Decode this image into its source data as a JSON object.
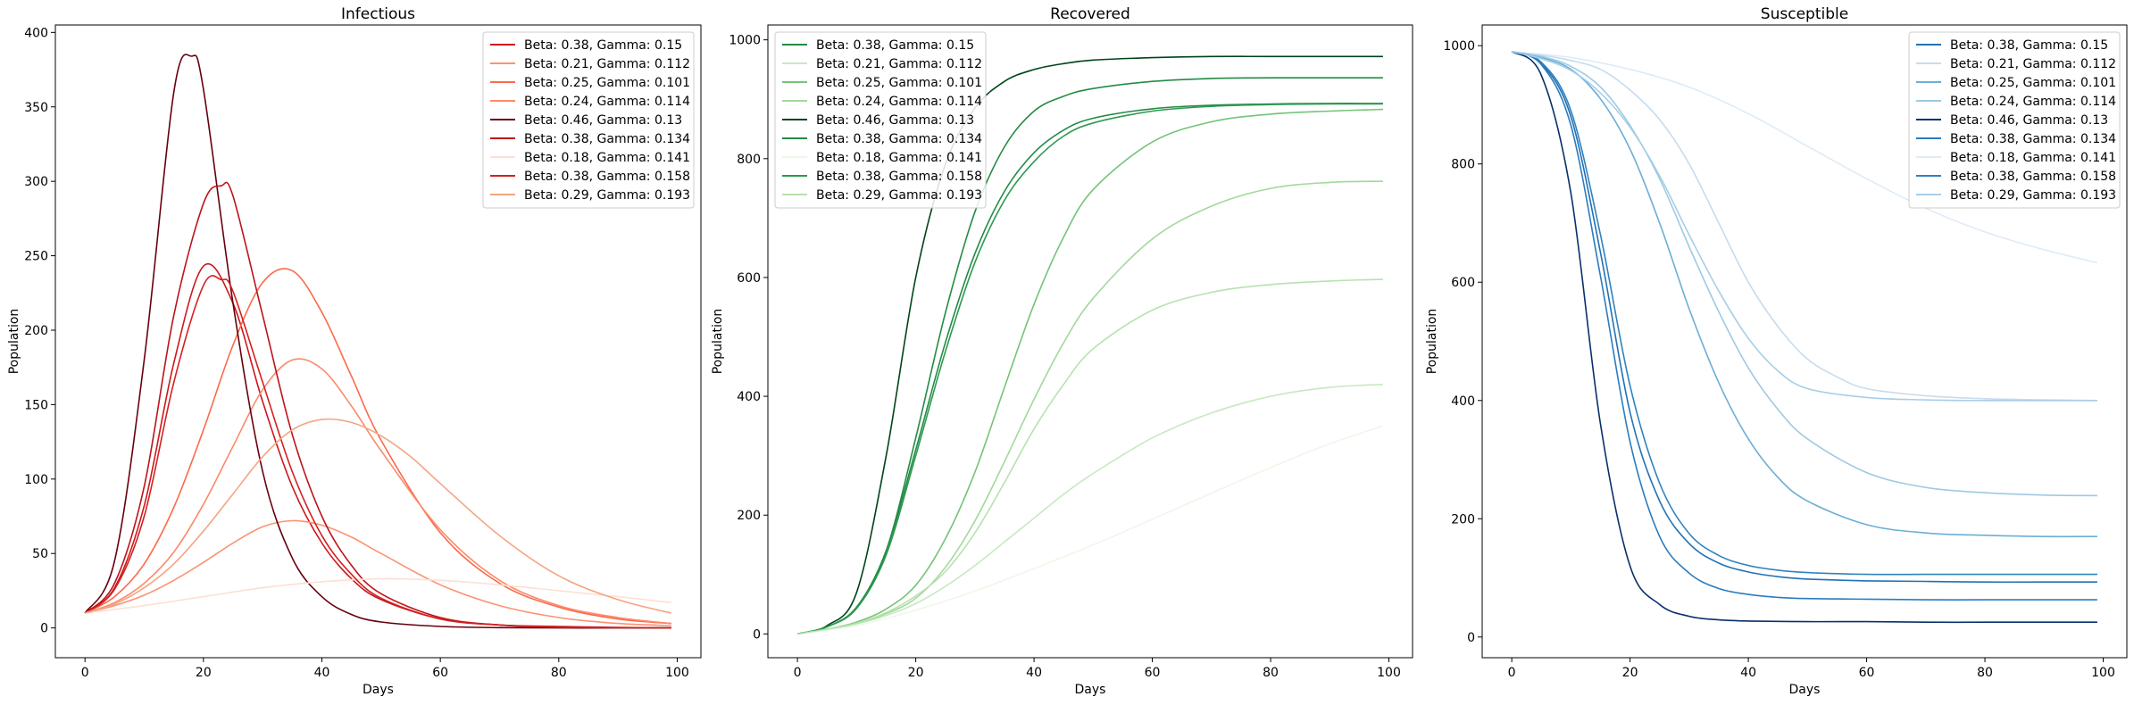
{
  "chart_data": [
    {
      "type": "line",
      "title": "Infectious",
      "xlabel": "Days",
      "ylabel": "Population",
      "xlim": [
        -5,
        104
      ],
      "ylim": [
        -20,
        405
      ],
      "xticks": [
        0,
        20,
        40,
        60,
        80,
        100
      ],
      "yticks": [
        0,
        50,
        100,
        150,
        200,
        250,
        300,
        350,
        400
      ],
      "legend_position": "top-right",
      "series": [
        {
          "name": "Beta: 0.38, Gamma: 0.15",
          "color": "#cb181d",
          "x": [
            0,
            5,
            10,
            15,
            20,
            25,
            30,
            35,
            40,
            45,
            50,
            60,
            70,
            80,
            90,
            99
          ],
          "y": [
            10,
            27,
            82,
            178,
            243,
            218,
            152,
            95,
            57,
            33,
            19,
            6,
            2,
            1,
            0.3,
            0.1
          ]
        },
        {
          "name": "Beta: 0.21, Gamma: 0.112",
          "color": "#fc9272",
          "x": [
            0,
            5,
            10,
            15,
            20,
            25,
            30,
            35,
            40,
            45,
            50,
            60,
            70,
            80,
            90,
            99
          ],
          "y": [
            10,
            15,
            22,
            32,
            44,
            57,
            68,
            72,
            69,
            61,
            50,
            29,
            15,
            7,
            3,
            1.5
          ]
        },
        {
          "name": "Beta: 0.25, Gamma: 0.101",
          "color": "#fb6a4a",
          "x": [
            0,
            5,
            10,
            15,
            20,
            25,
            30,
            35,
            40,
            45,
            50,
            60,
            70,
            80,
            90,
            99
          ],
          "y": [
            10,
            21,
            43,
            81,
            133,
            190,
            232,
            240,
            212,
            169,
            126,
            64,
            30,
            14,
            6,
            3
          ]
        },
        {
          "name": "Beta: 0.24, Gamma: 0.114",
          "color": "#fc8a6a",
          "x": [
            0,
            5,
            10,
            15,
            20,
            25,
            30,
            35,
            40,
            45,
            50,
            60,
            70,
            80,
            90,
            99
          ],
          "y": [
            10,
            17,
            30,
            51,
            83,
            122,
            160,
            180,
            174,
            149,
            119,
            66,
            32,
            15,
            7,
            3
          ]
        },
        {
          "name": "Beta: 0.46, Gamma: 0.13",
          "color": "#67000d",
          "x": [
            0,
            5,
            10,
            15,
            18,
            20,
            25,
            30,
            35,
            40,
            45,
            50,
            60,
            70,
            80,
            90,
            99
          ],
          "y": [
            10,
            45,
            180,
            360,
            384,
            362,
            218,
            105,
            47,
            21,
            9,
            4,
            1,
            0.2,
            0,
            0,
            0
          ]
        },
        {
          "name": "Beta: 0.38, Gamma: 0.134",
          "color": "#bc141a",
          "x": [
            0,
            5,
            10,
            15,
            20,
            23,
            25,
            30,
            35,
            40,
            45,
            50,
            60,
            70,
            80,
            90,
            99
          ],
          "y": [
            10,
            30,
            95,
            210,
            285,
            297,
            290,
            210,
            130,
            75,
            42,
            23,
            7,
            2,
            0.6,
            0.2,
            0.1
          ]
        },
        {
          "name": "Beta: 0.18, Gamma: 0.141",
          "color": "#fde0d2",
          "x": [
            0,
            10,
            20,
            30,
            40,
            50,
            60,
            70,
            80,
            90,
            99
          ],
          "y": [
            10,
            15,
            21,
            27,
            31,
            33,
            32,
            29,
            25,
            21,
            17
          ]
        },
        {
          "name": "Beta: 0.38, Gamma: 0.158",
          "color": "#d42020",
          "x": [
            0,
            5,
            10,
            15,
            20,
            23,
            25,
            30,
            35,
            40,
            45,
            50,
            60,
            70,
            80,
            90,
            99
          ],
          "y": [
            10,
            26,
            75,
            165,
            230,
            234,
            226,
            165,
            105,
            62,
            36,
            20,
            6,
            2,
            0.5,
            0.2,
            0.1
          ]
        },
        {
          "name": "Beta: 0.29, Gamma: 0.193",
          "color": "#f4a582",
          "x": [
            0,
            5,
            10,
            15,
            20,
            25,
            30,
            35,
            40,
            45,
            50,
            55,
            60,
            70,
            80,
            90,
            99
          ],
          "y": [
            10,
            16,
            27,
            43,
            65,
            90,
            115,
            133,
            140,
            138,
            129,
            115,
            97,
            62,
            35,
            19,
            10
          ]
        }
      ]
    },
    {
      "type": "line",
      "title": "Recovered",
      "xlabel": "Days",
      "ylabel": "Population",
      "xlim": [
        -5,
        104
      ],
      "ylim": [
        -40,
        1025
      ],
      "xticks": [
        0,
        20,
        40,
        60,
        80,
        100
      ],
      "yticks": [
        0,
        200,
        400,
        600,
        800,
        1000
      ],
      "legend_position": "top-left",
      "series": [
        {
          "name": "Beta: 0.38, Gamma: 0.15",
          "color": "#238b45",
          "x": [
            0,
            5,
            10,
            15,
            20,
            25,
            30,
            35,
            40,
            45,
            50,
            60,
            70,
            80,
            90,
            99
          ],
          "y": [
            0,
            12,
            45,
            140,
            310,
            490,
            640,
            745,
            810,
            848,
            868,
            884,
            890,
            892,
            893,
            893
          ]
        },
        {
          "name": "Beta: 0.21, Gamma: 0.112",
          "color": "#c7e9c0",
          "x": [
            0,
            5,
            10,
            15,
            20,
            25,
            30,
            35,
            40,
            45,
            50,
            60,
            70,
            80,
            90,
            99
          ],
          "y": [
            0,
            7,
            17,
            31,
            51,
            80,
            115,
            155,
            195,
            235,
            270,
            330,
            372,
            400,
            415,
            420
          ]
        },
        {
          "name": "Beta: 0.25, Gamma: 0.101",
          "color": "#74c476",
          "x": [
            0,
            5,
            10,
            15,
            20,
            25,
            30,
            35,
            40,
            45,
            50,
            60,
            70,
            80,
            90,
            99
          ],
          "y": [
            0,
            8,
            20,
            42,
            82,
            160,
            272,
            415,
            555,
            668,
            748,
            828,
            862,
            875,
            880,
            883
          ]
        },
        {
          "name": "Beta: 0.24, Gamma: 0.114",
          "color": "#a1d99b",
          "x": [
            0,
            5,
            10,
            15,
            20,
            25,
            30,
            35,
            40,
            45,
            50,
            60,
            70,
            80,
            90,
            99
          ],
          "y": [
            0,
            8,
            18,
            34,
            60,
            112,
            190,
            290,
            395,
            490,
            565,
            665,
            720,
            750,
            760,
            762
          ]
        },
        {
          "name": "Beta: 0.46, Gamma: 0.13",
          "color": "#00441b",
          "x": [
            0,
            5,
            10,
            15,
            20,
            25,
            30,
            35,
            40,
            45,
            50,
            60,
            70,
            80,
            90,
            99
          ],
          "y": [
            0,
            14,
            70,
            300,
            600,
            790,
            885,
            930,
            950,
            960,
            966,
            970,
            972,
            972,
            972,
            972
          ]
        },
        {
          "name": "Beta: 0.38, Gamma: 0.134",
          "color": "#238b45",
          "x": [
            0,
            5,
            10,
            15,
            20,
            25,
            30,
            35,
            40,
            45,
            50,
            60,
            70,
            80,
            90,
            99
          ],
          "y": [
            0,
            12,
            45,
            140,
            330,
            540,
            710,
            820,
            880,
            905,
            918,
            930,
            935,
            936,
            936,
            936
          ]
        },
        {
          "name": "Beta: 0.18, Gamma: 0.141",
          "color": "#edf8e9",
          "x": [
            0,
            10,
            20,
            30,
            40,
            50,
            60,
            70,
            80,
            90,
            99
          ],
          "y": [
            0,
            14,
            40,
            72,
            110,
            150,
            193,
            237,
            280,
            320,
            350
          ]
        },
        {
          "name": "Beta: 0.38, Gamma: 0.158",
          "color": "#2a9a4f",
          "x": [
            0,
            5,
            10,
            15,
            20,
            25,
            30,
            35,
            40,
            45,
            50,
            60,
            70,
            80,
            90,
            99
          ],
          "y": [
            0,
            12,
            43,
            133,
            300,
            475,
            625,
            730,
            795,
            838,
            860,
            880,
            888,
            891,
            892,
            892
          ]
        },
        {
          "name": "Beta: 0.29, Gamma: 0.193",
          "color": "#b7e2b0",
          "x": [
            0,
            5,
            10,
            15,
            20,
            25,
            30,
            35,
            40,
            45,
            50,
            60,
            70,
            80,
            90,
            99
          ],
          "y": [
            0,
            8,
            18,
            36,
            64,
            105,
            170,
            255,
            345,
            420,
            480,
            545,
            575,
            588,
            594,
            597
          ]
        }
      ]
    },
    {
      "type": "line",
      "title": "Susceptible",
      "xlabel": "Days",
      "ylabel": "Population",
      "xlim": [
        -5,
        104
      ],
      "ylim": [
        -35,
        1035
      ],
      "xticks": [
        0,
        20,
        40,
        60,
        80,
        100
      ],
      "yticks": [
        0,
        200,
        400,
        600,
        800,
        1000
      ],
      "legend_position": "top-right",
      "series": [
        {
          "name": "Beta: 0.38, Gamma: 0.15",
          "color": "#2171b5",
          "x": [
            0,
            5,
            10,
            15,
            20,
            25,
            30,
            35,
            40,
            45,
            50,
            60,
            70,
            80,
            90,
            99
          ],
          "y": [
            990,
            970,
            880,
            650,
            380,
            230,
            158,
            125,
            110,
            102,
            98,
            95,
            94,
            93,
            93,
            93
          ]
        },
        {
          "name": "Beta: 0.21, Gamma: 0.112",
          "color": "#c6dbef",
          "x": [
            0,
            5,
            10,
            15,
            20,
            25,
            30,
            35,
            40,
            45,
            50,
            55,
            60,
            70,
            80,
            90,
            99
          ],
          "y": [
            990,
            984,
            975,
            960,
            925,
            875,
            800,
            700,
            600,
            525,
            470,
            440,
            420,
            408,
            403,
            401,
            400
          ]
        },
        {
          "name": "Beta: 0.25, Gamma: 0.101",
          "color": "#6baed6",
          "x": [
            0,
            5,
            10,
            15,
            20,
            25,
            30,
            35,
            40,
            45,
            50,
            60,
            70,
            80,
            90,
            99
          ],
          "y": [
            990,
            980,
            960,
            910,
            825,
            700,
            555,
            430,
            335,
            270,
            230,
            190,
            176,
            172,
            170,
            170
          ]
        },
        {
          "name": "Beta: 0.24, Gamma: 0.114",
          "color": "#9ecae1",
          "x": [
            0,
            5,
            10,
            15,
            20,
            25,
            30,
            35,
            40,
            45,
            50,
            60,
            70,
            80,
            90,
            99
          ],
          "y": [
            990,
            982,
            965,
            930,
            865,
            775,
            660,
            550,
            455,
            385,
            335,
            278,
            253,
            244,
            240,
            239
          ]
        },
        {
          "name": "Beta: 0.46, Gamma: 0.13",
          "color": "#08306b",
          "x": [
            0,
            5,
            10,
            15,
            20,
            25,
            30,
            35,
            40,
            50,
            60,
            70,
            80,
            90,
            99
          ],
          "y": [
            990,
            950,
            750,
            360,
            120,
            55,
            35,
            29,
            27,
            26,
            26,
            25,
            25,
            25,
            25
          ]
        },
        {
          "name": "Beta: 0.38, Gamma: 0.134",
          "color": "#2a7cc0",
          "x": [
            0,
            5,
            10,
            15,
            20,
            25,
            30,
            35,
            40,
            45,
            50,
            60,
            70,
            80,
            90,
            99
          ],
          "y": [
            990,
            968,
            865,
            610,
            330,
            170,
            108,
            82,
            72,
            67,
            65,
            64,
            63,
            63,
            63,
            63
          ]
        },
        {
          "name": "Beta: 0.18, Gamma: 0.141",
          "color": "#deebf7",
          "x": [
            0,
            10,
            20,
            30,
            40,
            50,
            60,
            70,
            80,
            90,
            99
          ],
          "y": [
            990,
            980,
            960,
            930,
            885,
            830,
            775,
            725,
            685,
            655,
            633
          ]
        },
        {
          "name": "Beta: 0.38, Gamma: 0.158",
          "color": "#3182bd",
          "x": [
            0,
            5,
            10,
            15,
            20,
            25,
            30,
            35,
            40,
            45,
            50,
            60,
            70,
            80,
            90,
            99
          ],
          "y": [
            990,
            972,
            890,
            680,
            425,
            260,
            175,
            138,
            121,
            113,
            109,
            106,
            106,
            106,
            106,
            106
          ]
        },
        {
          "name": "Beta: 0.29, Gamma: 0.193",
          "color": "#a6cee8",
          "x": [
            0,
            5,
            10,
            15,
            20,
            25,
            30,
            35,
            40,
            45,
            50,
            60,
            70,
            80,
            90,
            99
          ],
          "y": [
            990,
            978,
            958,
            920,
            862,
            780,
            680,
            585,
            505,
            450,
            420,
            405,
            401,
            400,
            400,
            400
          ]
        }
      ]
    }
  ]
}
